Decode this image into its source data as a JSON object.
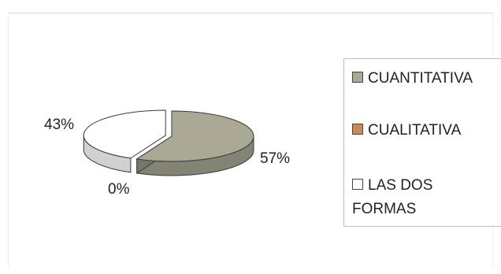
{
  "chart_data": {
    "type": "pie",
    "style": "3d-exploded",
    "slices": [
      {
        "label": "CUANTITATIVA",
        "value": 57,
        "value_label": "57%",
        "color": "#a9a996"
      },
      {
        "label": "CUALITATIVA",
        "value": 0,
        "value_label": "0%",
        "color": "#c98a5a"
      },
      {
        "label": "LAS DOS FORMAS",
        "value": 43,
        "value_label": "43%",
        "color": "#ffffff"
      }
    ],
    "legend": {
      "placement": "right",
      "items": [
        {
          "label": "CUANTITATIVA",
          "color": "#a9a996"
        },
        {
          "label": "CUALITATIVA",
          "color": "#c98a5a"
        },
        {
          "label": "LAS DOS FORMAS",
          "line1": "LAS DOS",
          "line2": "FORMAS",
          "color": "#ffffff"
        }
      ]
    }
  }
}
